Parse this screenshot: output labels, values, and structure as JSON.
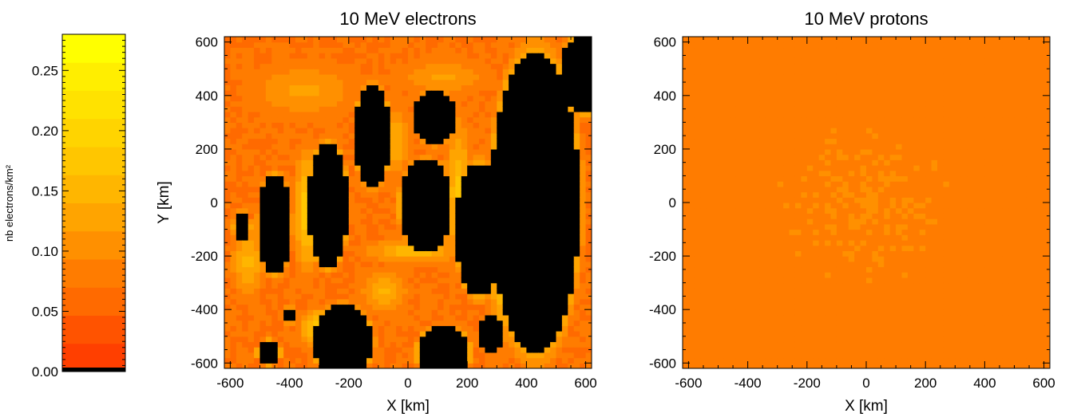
{
  "figure": {
    "colorbar": {
      "label": "nb electrons/km²",
      "range": [
        0.0,
        0.28
      ],
      "ticks": [
        "0.00",
        "0.05",
        "0.10",
        "0.15",
        "0.20",
        "0.25"
      ],
      "tick_values": [
        0.0,
        0.05,
        0.1,
        0.15,
        0.2,
        0.25
      ],
      "colors": [
        "#000000",
        "#ff3f00",
        "#ff5300",
        "#ff6a00",
        "#ff7c00",
        "#ff9000",
        "#ffa400",
        "#ffb600",
        "#ffc600",
        "#ffd400",
        "#ffe200",
        "#ffee00",
        "#ffff00"
      ]
    }
  },
  "chart_data": [
    {
      "type": "heatmap",
      "title": "10 MeV electrons",
      "xlabel": "X [km]",
      "ylabel": "Y [km]",
      "xlim": [
        -620,
        620
      ],
      "ylim": [
        -620,
        620
      ],
      "xticks": [
        "-600",
        "-400",
        "-200",
        "0",
        "200",
        "400",
        "600"
      ],
      "yticks": [
        "-600",
        "-400",
        "-200",
        "0",
        "200",
        "400",
        "600"
      ],
      "tick_values": [
        -600,
        -400,
        -200,
        0,
        200,
        400,
        600
      ],
      "z_range": [
        0.0,
        0.28
      ],
      "background_level": 0.07,
      "features": [
        {
          "kind": "void",
          "x": 430,
          "y": 0,
          "rx": 150,
          "ry": 560
        },
        {
          "kind": "void",
          "x": 600,
          "y": 480,
          "rx": 90,
          "ry": 150
        },
        {
          "kind": "void",
          "x": -450,
          "y": -80,
          "rx": 55,
          "ry": 190
        },
        {
          "kind": "void",
          "x": -270,
          "y": -10,
          "rx": 70,
          "ry": 230
        },
        {
          "kind": "void",
          "x": -120,
          "y": 250,
          "rx": 60,
          "ry": 190
        },
        {
          "kind": "void",
          "x": 60,
          "y": -10,
          "rx": 90,
          "ry": 170
        },
        {
          "kind": "void",
          "x": 90,
          "y": 320,
          "rx": 70,
          "ry": 100
        },
        {
          "kind": "void",
          "x": 240,
          "y": -100,
          "rx": 80,
          "ry": 250
        },
        {
          "kind": "void",
          "x": -220,
          "y": -520,
          "rx": 100,
          "ry": 140
        },
        {
          "kind": "void",
          "x": 120,
          "y": -560,
          "rx": 90,
          "ry": 100
        },
        {
          "kind": "void",
          "x": 280,
          "y": -490,
          "rx": 40,
          "ry": 70
        },
        {
          "kind": "void",
          "x": -560,
          "y": -90,
          "rx": 30,
          "ry": 60
        },
        {
          "kind": "void",
          "x": -400,
          "y": -420,
          "rx": 25,
          "ry": 30
        },
        {
          "kind": "void",
          "x": -470,
          "y": -560,
          "rx": 40,
          "ry": 50
        },
        {
          "kind": "ridge",
          "x": -340,
          "y": -30,
          "rx": 40,
          "ry": 210,
          "level": 0.2
        },
        {
          "kind": "ridge",
          "x": 170,
          "y": 40,
          "rx": 40,
          "ry": 250,
          "level": 0.18
        },
        {
          "kind": "ridge",
          "x": 320,
          "y": -300,
          "rx": 45,
          "ry": 200,
          "level": 0.17
        },
        {
          "kind": "ridge",
          "x": -80,
          "y": -330,
          "rx": 70,
          "ry": 70,
          "level": 0.16
        },
        {
          "kind": "ridge",
          "x": -300,
          "y": -470,
          "rx": 60,
          "ry": 70,
          "level": 0.2
        },
        {
          "kind": "ridge",
          "x": 20,
          "y": -180,
          "rx": 150,
          "ry": 40,
          "level": 0.17
        },
        {
          "kind": "ridge",
          "x": -40,
          "y": 230,
          "rx": 40,
          "ry": 120,
          "level": 0.15
        },
        {
          "kind": "ridge",
          "x": 120,
          "y": 470,
          "rx": 130,
          "ry": 60,
          "level": 0.13
        },
        {
          "kind": "ridge",
          "x": -350,
          "y": 420,
          "rx": 160,
          "ry": 90,
          "level": 0.13
        },
        {
          "kind": "ridge",
          "x": -540,
          "y": -220,
          "rx": 50,
          "ry": 110,
          "level": 0.16
        }
      ]
    },
    {
      "type": "heatmap",
      "title": "10 MeV protons",
      "xlabel": "X [km]",
      "xlim": [
        -620,
        620
      ],
      "ylim": [
        -620,
        620
      ],
      "xticks": [
        "-600",
        "-400",
        "-200",
        "0",
        "200",
        "400",
        "600"
      ],
      "yticks": [
        "-600",
        "-400",
        "-200",
        "0",
        "200",
        "400",
        "600"
      ],
      "tick_values": [
        -600,
        -400,
        -200,
        0,
        200,
        400,
        600
      ],
      "z_range": [
        0.0,
        0.28
      ],
      "background_level": 0.08,
      "center_level": 0.095
    }
  ]
}
